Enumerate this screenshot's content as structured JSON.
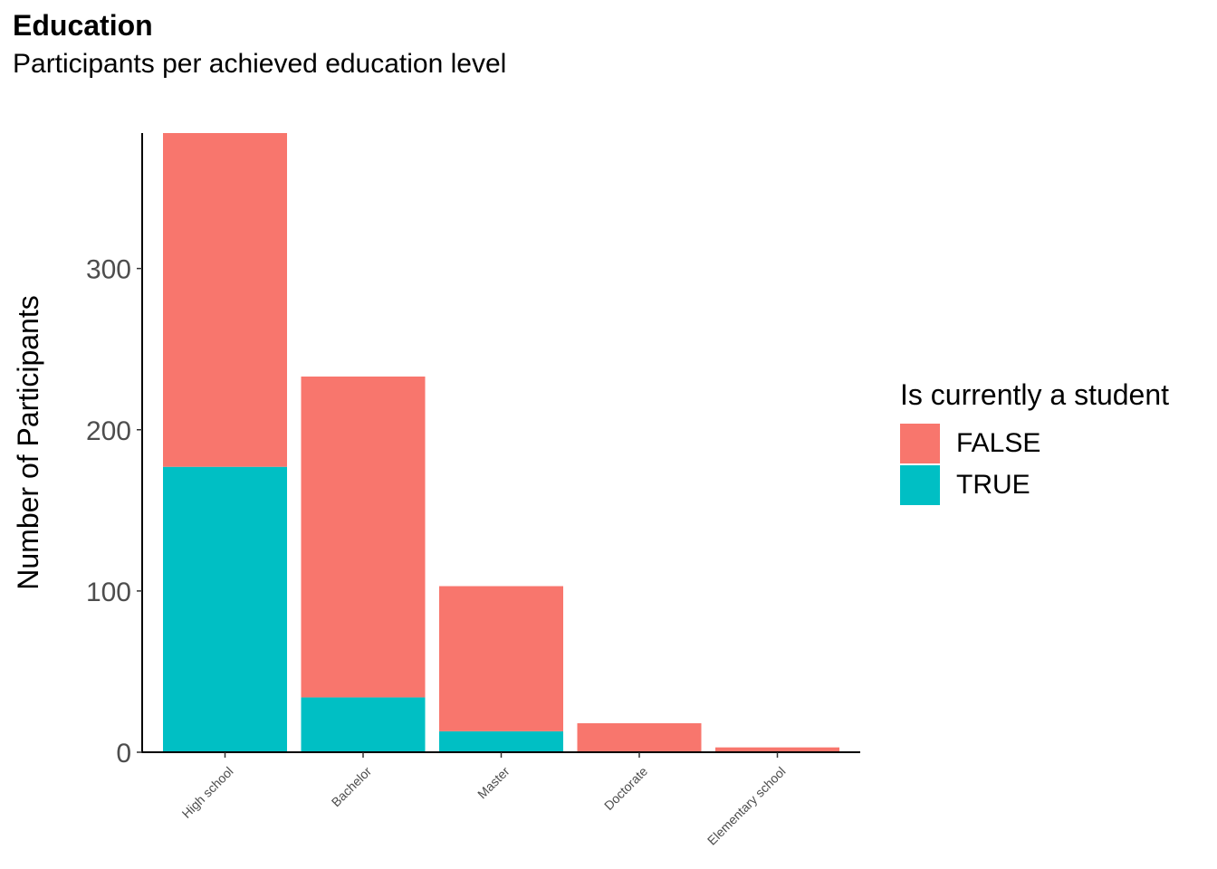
{
  "chart_data": {
    "type": "bar",
    "stacked": true,
    "title": "Education",
    "subtitle": "Participants per achieved education level",
    "xlabel": "",
    "ylabel": "Number of Participants",
    "categories": [
      "High school",
      "Bachelor",
      "Master",
      "Doctorate",
      "Elementary school"
    ],
    "series": [
      {
        "name": "FALSE",
        "color": "#F8766D",
        "values": [
          207,
          199,
          90,
          18,
          3
        ]
      },
      {
        "name": "TRUE",
        "color": "#00BFC4",
        "values": [
          177,
          34,
          13,
          0,
          0
        ]
      }
    ],
    "yticks": [
      0,
      100,
      200,
      300
    ],
    "ylim": [
      0,
      384
    ],
    "grid": false,
    "legend": {
      "title": "Is currently a student",
      "placement": "right"
    }
  }
}
